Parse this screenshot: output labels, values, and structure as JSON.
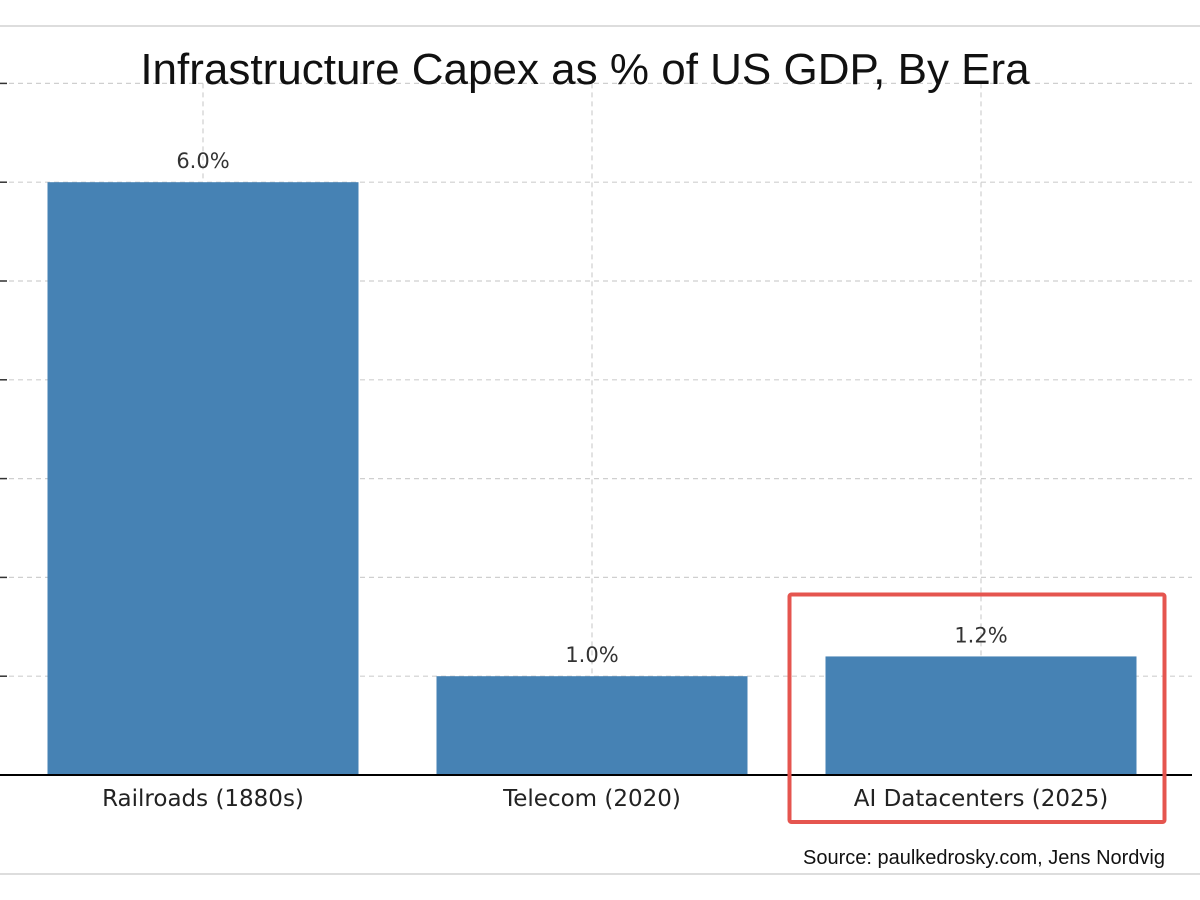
{
  "chart_data": {
    "type": "bar",
    "title": "Infrastructure Capex as % of US GDP, By Era",
    "categories": [
      "Railroads (1880s)",
      "Telecom (2020)",
      "AI Datacenters (2025)"
    ],
    "values": [
      6.0,
      1.0,
      1.2
    ],
    "data_labels": [
      "6.0%",
      "1.0%",
      "1.2%"
    ],
    "xlabel": "",
    "ylabel": "",
    "ylim": [
      0,
      7
    ],
    "grid": true,
    "bar_color": "#4682b4",
    "highlighted_category": "AI Datacenters (2025)",
    "highlight_color": "#e5554f"
  },
  "source": "Source: paulkedrosky.com, Jens Nordvig"
}
